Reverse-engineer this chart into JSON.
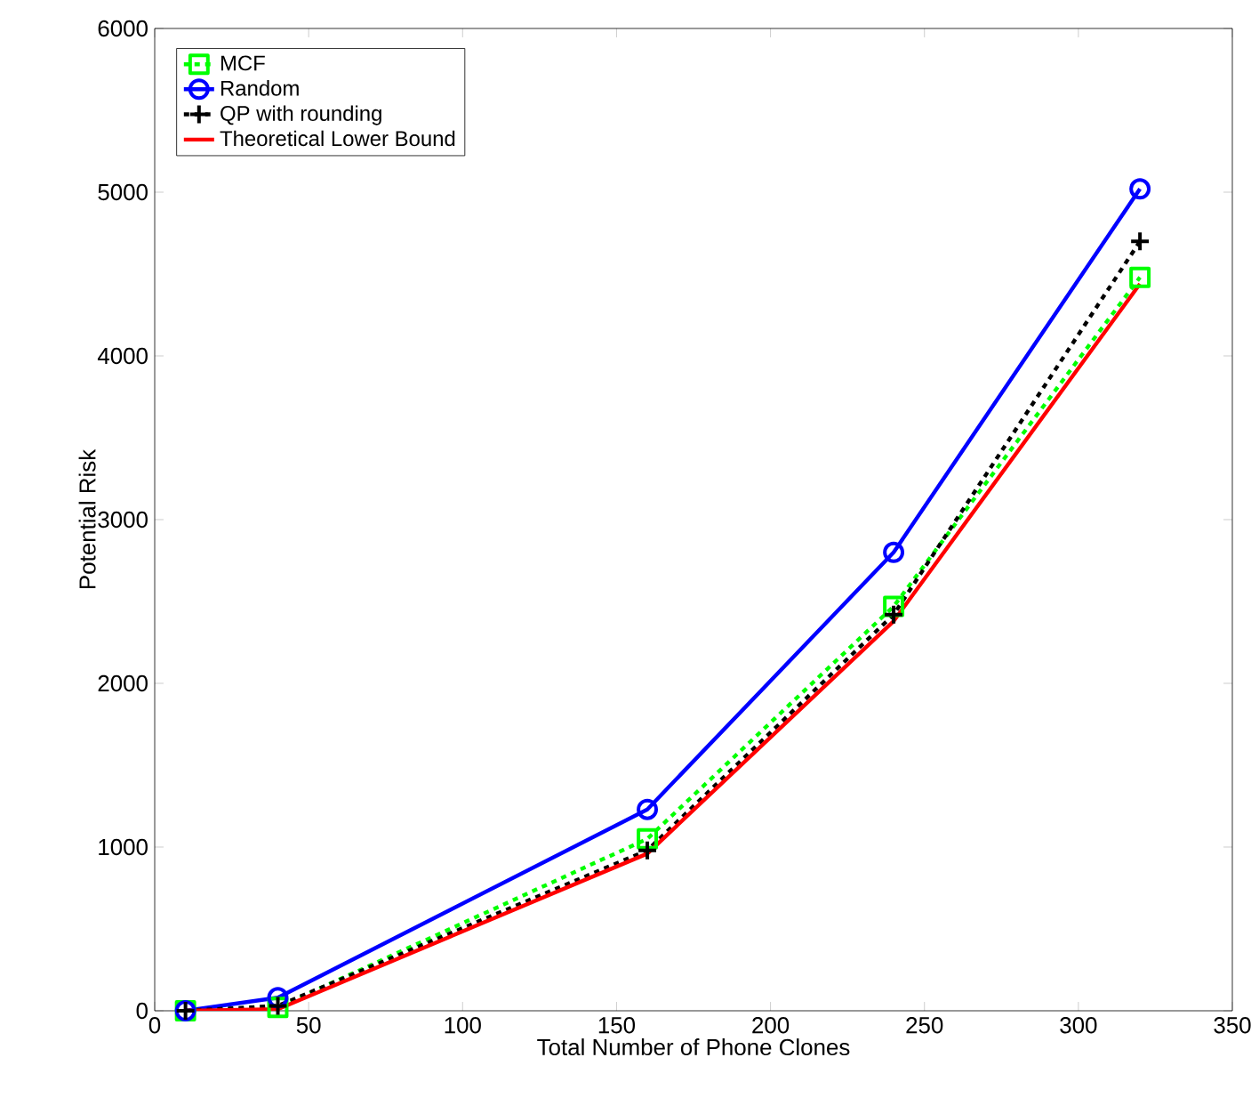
{
  "chart_data": {
    "type": "line",
    "xlabel": "Total Number of Phone Clones",
    "ylabel": "Potential Risk",
    "x": [
      10,
      40,
      160,
      240,
      320
    ],
    "series": [
      {
        "name": "MCF",
        "color": "#00ff00",
        "values": [
          0,
          20,
          1050,
          2470,
          4480
        ],
        "marker": "square",
        "line_style": "dashed"
      },
      {
        "name": "Random",
        "color": "#0000ff",
        "values": [
          0,
          80,
          1230,
          2800,
          5020
        ],
        "marker": "circle",
        "line_style": "solid"
      },
      {
        "name": "QP with rounding",
        "color": "#000000",
        "values": [
          0,
          30,
          980,
          2420,
          4700
        ],
        "marker": "cross",
        "line_style": "dashed"
      },
      {
        "name": "Theoretical Lower Bound",
        "color": "#ff0000",
        "values": [
          0,
          10,
          960,
          2380,
          4440
        ],
        "marker": "none",
        "line_style": "solid"
      }
    ],
    "xlim": [
      0,
      350
    ],
    "xticks": [
      0,
      50,
      100,
      150,
      200,
      250,
      300,
      350
    ],
    "ylim": [
      0,
      6000
    ],
    "yticks": [
      0,
      1000,
      2000,
      3000,
      4000,
      5000,
      6000
    ],
    "grid": false,
    "legend": "top left"
  }
}
